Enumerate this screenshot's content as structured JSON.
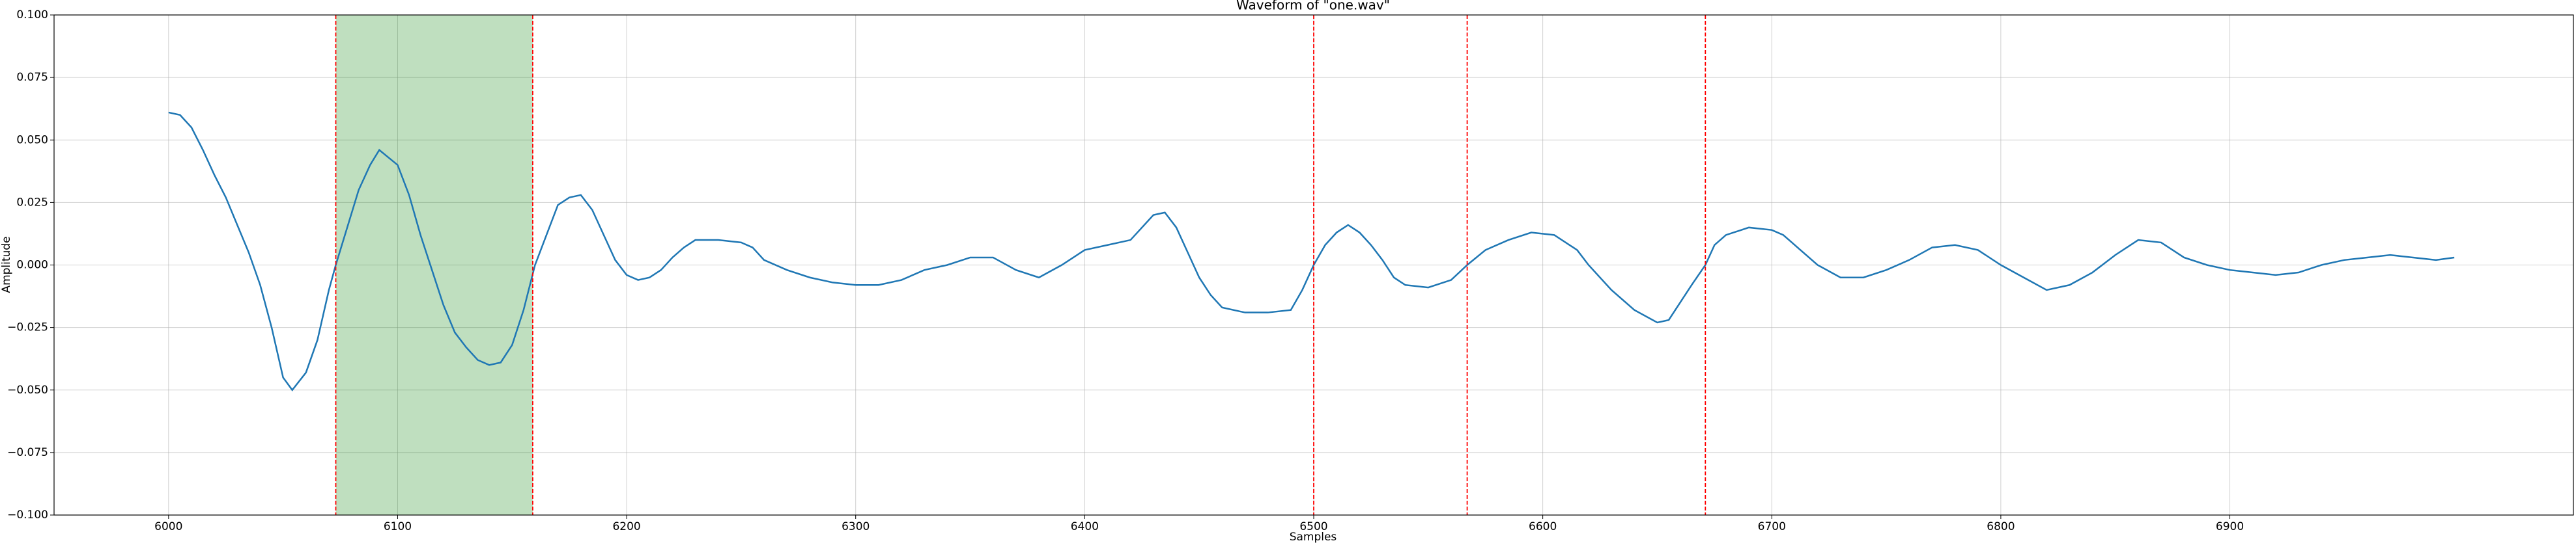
{
  "chart_data": {
    "type": "line",
    "title": "Waveform of \"one.wav\"",
    "xlabel": "Samples",
    "ylabel": "Amplitude",
    "x": [
      6000,
      6005,
      6010,
      6015,
      6020,
      6025,
      6030,
      6035,
      6040,
      6045,
      6050,
      6054,
      6060,
      6065,
      6070,
      6073,
      6078,
      6083,
      6088,
      6092,
      6100,
      6105,
      6110,
      6115,
      6120,
      6125,
      6130,
      6135,
      6140,
      6145,
      6150,
      6155,
      6160,
      6165,
      6170,
      6175,
      6180,
      6185,
      6190,
      6195,
      6200,
      6205,
      6210,
      6215,
      6220,
      6225,
      6230,
      6240,
      6250,
      6255,
      6260,
      6270,
      6280,
      6290,
      6300,
      6310,
      6320,
      6330,
      6340,
      6350,
      6360,
      6370,
      6380,
      6390,
      6400,
      6410,
      6420,
      6430,
      6435,
      6440,
      6445,
      6450,
      6455,
      6460,
      6470,
      6480,
      6490,
      6495,
      6500,
      6505,
      6510,
      6515,
      6520,
      6525,
      6530,
      6535,
      6540,
      6550,
      6560,
      6567,
      6575,
      6585,
      6595,
      6605,
      6615,
      6620,
      6630,
      6640,
      6650,
      6655,
      6660,
      6665,
      6671,
      6675,
      6680,
      6690,
      6700,
      6705,
      6710,
      6720,
      6730,
      6740,
      6750,
      6760,
      6770,
      6780,
      6790,
      6800,
      6810,
      6820,
      6830,
      6840,
      6850,
      6860,
      6870,
      6880,
      6890,
      6900,
      6910,
      6920,
      6930,
      6940,
      6950,
      6960,
      6970,
      6980,
      6990,
      6998
    ],
    "values": [
      0.061,
      0.06,
      0.055,
      0.046,
      0.036,
      0.027,
      0.016,
      0.005,
      -0.008,
      -0.025,
      -0.045,
      -0.05,
      -0.043,
      -0.03,
      -0.01,
      0.0,
      0.015,
      0.03,
      0.04,
      0.046,
      0.04,
      0.028,
      0.012,
      -0.002,
      -0.016,
      -0.027,
      -0.033,
      -0.038,
      -0.04,
      -0.039,
      -0.032,
      -0.018,
      0.0,
      0.012,
      0.024,
      0.027,
      0.028,
      0.022,
      0.012,
      0.002,
      -0.004,
      -0.006,
      -0.005,
      -0.002,
      0.003,
      0.007,
      0.01,
      0.01,
      0.009,
      0.007,
      0.002,
      -0.002,
      -0.005,
      -0.007,
      -0.008,
      -0.008,
      -0.006,
      -0.002,
      0.0,
      0.003,
      0.003,
      -0.002,
      -0.005,
      0.0,
      0.006,
      0.008,
      0.01,
      0.02,
      0.021,
      0.015,
      0.005,
      -0.005,
      -0.012,
      -0.017,
      -0.019,
      -0.019,
      -0.018,
      -0.01,
      0.0,
      0.008,
      0.013,
      0.016,
      0.013,
      0.008,
      0.002,
      -0.005,
      -0.008,
      -0.009,
      -0.006,
      0.0,
      0.006,
      0.01,
      0.013,
      0.012,
      0.006,
      0.0,
      -0.01,
      -0.018,
      -0.023,
      -0.022,
      -0.015,
      -0.008,
      0.0,
      0.008,
      0.012,
      0.015,
      0.014,
      0.012,
      0.008,
      0.0,
      -0.005,
      -0.005,
      -0.002,
      0.002,
      0.007,
      0.008,
      0.006,
      0.0,
      -0.005,
      -0.01,
      -0.008,
      -0.003,
      0.004,
      0.01,
      0.009,
      0.003,
      0.0,
      -0.002,
      -0.003,
      -0.004,
      -0.003,
      0.0,
      0.002,
      0.003,
      0.004,
      0.003,
      0.002,
      0.003
    ],
    "color": "#1f77b4",
    "span": [
      6073,
      6159
    ],
    "span_color": "#008000",
    "vlines": [
      6073,
      6159,
      6500,
      6567,
      6671
    ],
    "vline_color": "#ff0000",
    "xlim": [
      5950,
      7050
    ],
    "xticks": [
      6000,
      6100,
      6200,
      6300,
      6400,
      6500,
      6600,
      6700,
      6800,
      6900
    ],
    "ylim": [
      -0.1,
      0.1
    ],
    "yticks": [
      {
        "value": -0.1,
        "label": "−0.100"
      },
      {
        "value": -0.075,
        "label": "−0.075"
      },
      {
        "value": -0.05,
        "label": "−0.050"
      },
      {
        "value": -0.025,
        "label": "−0.025"
      },
      {
        "value": 0,
        "label": "0.000"
      },
      {
        "value": 0.025,
        "label": "0.025"
      },
      {
        "value": 0.05,
        "label": "0.050"
      },
      {
        "value": 0.075,
        "label": "0.075"
      },
      {
        "value": 0.1,
        "label": "0.100"
      }
    ],
    "grid": true
  }
}
